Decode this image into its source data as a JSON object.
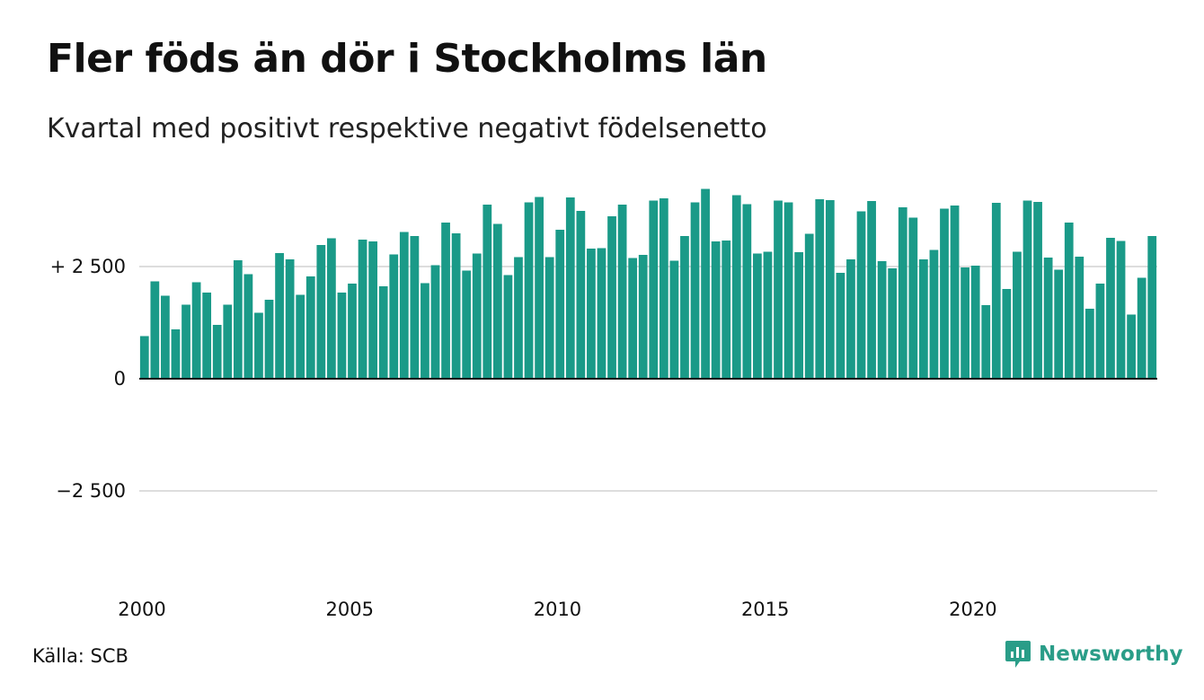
{
  "title": "Fler föds än dör i Stockholms län",
  "subtitle": "Kvartal med positivt respektive negativt födelsenetto",
  "source": "Källa: SCB",
  "brand": {
    "name": "Newsworthy",
    "icon": "newsworthy-logo-icon",
    "color": "#2a9d88"
  },
  "colors": {
    "bar": "#1a9a88",
    "grid": "#dddddd",
    "axis": "#111111",
    "text": "#111111"
  },
  "chart_data": {
    "type": "bar",
    "xlabel": "",
    "ylabel": "",
    "ylim": [
      -5000,
      4500
    ],
    "y_ticks": [
      {
        "value": 2500,
        "label": "+ 2 500"
      },
      {
        "value": 0,
        "label": "0"
      },
      {
        "value": -2500,
        "label": "−2 500"
      }
    ],
    "x_ticks": [
      "2000",
      "2005",
      "2010",
      "2015",
      "2020"
    ],
    "grid": true,
    "start": "2000 Q1",
    "values": [
      950,
      2170,
      1850,
      1100,
      1650,
      2150,
      1920,
      1200,
      1650,
      2640,
      2330,
      1470,
      1760,
      2800,
      2660,
      1870,
      2280,
      2980,
      3130,
      1920,
      2120,
      3100,
      3060,
      2060,
      2770,
      3270,
      3180,
      2130,
      2530,
      3480,
      3240,
      2410,
      2790,
      3880,
      3450,
      2310,
      2710,
      3930,
      4050,
      2710,
      3320,
      4040,
      3740,
      2900,
      2910,
      3620,
      3880,
      2690,
      2760,
      3970,
      4020,
      2630,
      3180,
      3930,
      4230,
      3060,
      3080,
      4090,
      3890,
      2790,
      2830,
      3970,
      3930,
      2820,
      3230,
      4000,
      3980,
      2360,
      2660,
      3730,
      3960,
      2620,
      2460,
      3820,
      3590,
      2660,
      2870,
      3790,
      3860,
      2480,
      2520,
      1640,
      3920,
      2000,
      2830,
      3970,
      3940,
      2700,
      2430,
      3480,
      2720,
      1560,
      2120,
      3140,
      3070,
      1430,
      2250,
      3180
    ]
  }
}
